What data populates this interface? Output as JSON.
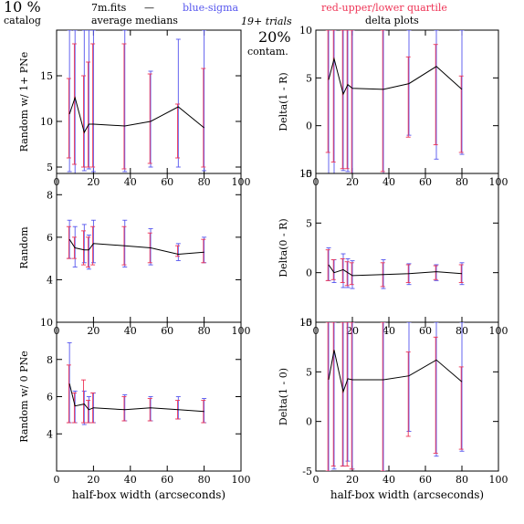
{
  "header": {
    "percent": "10 %",
    "catalog": "catalog",
    "filename": "7m.fits",
    "dash": "—",
    "medians": "average medians",
    "blue_label": "blue-sigma",
    "red_label": "red-upper/lower quartile",
    "trials": "19+ trials",
    "contam_pct": "20%",
    "contam": "contam.",
    "delta": "delta plots"
  },
  "colors": {
    "blue": "#5555ee",
    "red": "#ee3355",
    "line": "#000000"
  },
  "xlabel": "half-box width (arcseconds)",
  "chart_data": [
    {
      "type": "line",
      "ylabel": "Random w/ 1+ PNe",
      "xlim": [
        0,
        100
      ],
      "ylim": [
        4.3,
        20
      ],
      "xticks": [
        0,
        20,
        40,
        60,
        80,
        100
      ],
      "yticks": [
        5,
        10,
        15
      ],
      "x": [
        7,
        10,
        15,
        17.5,
        20,
        37,
        51,
        66,
        80
      ],
      "y": [
        10.8,
        12.6,
        8.8,
        9.7,
        9.7,
        9.5,
        10.0,
        11.6,
        9.3
      ],
      "sigma": [
        [
          4.5,
          20
        ],
        [
          4.3,
          20
        ],
        [
          4.6,
          20
        ],
        [
          4.8,
          20
        ],
        [
          4.5,
          20
        ],
        [
          4.5,
          20
        ],
        [
          5.0,
          15.5
        ],
        [
          5.0,
          19
        ],
        [
          4.6,
          20
        ]
      ],
      "quartile": [
        [
          6.0,
          14.7
        ],
        [
          5.3,
          18.5
        ],
        [
          5.0,
          15.0
        ],
        [
          5.0,
          16.5
        ],
        [
          5.0,
          18.5
        ],
        [
          4.8,
          18.5
        ],
        [
          5.4,
          15.2
        ],
        [
          6.0,
          11.9
        ],
        [
          5.0,
          15.8
        ]
      ]
    },
    {
      "type": "line",
      "ylabel": "Delta(1 - R)",
      "xlim": [
        0,
        100
      ],
      "ylim": [
        -5,
        10
      ],
      "xticks": [
        0,
        20,
        40,
        60,
        80,
        100
      ],
      "yticks": [
        -5,
        0,
        5,
        10
      ],
      "x": [
        7,
        10,
        15,
        17.5,
        20,
        37,
        51,
        66,
        80
      ],
      "y": [
        4.8,
        7.0,
        3.3,
        4.3,
        3.9,
        3.8,
        4.4,
        6.2,
        3.8
      ],
      "sigma": [
        [
          -5,
          10
        ],
        [
          -5,
          10
        ],
        [
          -4.7,
          10
        ],
        [
          -4.8,
          10
        ],
        [
          -5,
          10
        ],
        [
          -5,
          10
        ],
        [
          -1.0,
          10
        ],
        [
          -3.5,
          10
        ],
        [
          -3.0,
          10
        ]
      ],
      "quartile": [
        [
          -2.8,
          10
        ],
        [
          -3.8,
          10
        ],
        [
          -4.5,
          10
        ],
        [
          -4.5,
          10
        ],
        [
          -5,
          10
        ],
        [
          -4.8,
          10
        ],
        [
          -1.2,
          7.2
        ],
        [
          -2.0,
          8.5
        ],
        [
          -2.8,
          5.2
        ]
      ]
    },
    {
      "type": "line",
      "ylabel": "Random",
      "xlim": [
        0,
        100
      ],
      "ylim": [
        2,
        9
      ],
      "xticks": [
        0,
        20,
        40,
        60,
        80,
        100
      ],
      "yticks": [
        4,
        6,
        8
      ],
      "x": [
        7,
        10,
        15,
        17.5,
        20,
        37,
        51,
        66,
        80
      ],
      "y": [
        5.9,
        5.5,
        5.4,
        5.4,
        5.7,
        5.6,
        5.5,
        5.2,
        5.3
      ],
      "sigma": [
        [
          5.0,
          6.8
        ],
        [
          4.6,
          6.5
        ],
        [
          4.8,
          6.6
        ],
        [
          4.5,
          6.1
        ],
        [
          4.8,
          6.8
        ],
        [
          4.6,
          6.8
        ],
        [
          4.7,
          6.4
        ],
        [
          4.9,
          5.7
        ],
        [
          4.8,
          6.0
        ]
      ],
      "quartile": [
        [
          5.0,
          6.5
        ],
        [
          5.0,
          6.0
        ],
        [
          4.7,
          6.3
        ],
        [
          4.6,
          6.0
        ],
        [
          4.7,
          6.5
        ],
        [
          4.7,
          6.5
        ],
        [
          4.8,
          6.2
        ],
        [
          5.1,
          5.6
        ],
        [
          4.8,
          5.9
        ]
      ]
    },
    {
      "type": "line",
      "ylabel": "Delta(0 - R)",
      "xlim": [
        0,
        100
      ],
      "ylim": [
        -5,
        10
      ],
      "xticks": [
        0,
        20,
        40,
        60,
        80,
        100
      ],
      "yticks": [
        -5,
        0,
        5,
        10
      ],
      "x": [
        7,
        10,
        15,
        17.5,
        20,
        37,
        51,
        66,
        80
      ],
      "y": [
        0.8,
        0.0,
        0.3,
        0.0,
        -0.3,
        -0.2,
        -0.1,
        0.1,
        -0.1
      ],
      "sigma": [
        [
          -0.8,
          2.5
        ],
        [
          -1.0,
          1.3
        ],
        [
          -1.5,
          1.9
        ],
        [
          -1.5,
          1.4
        ],
        [
          -1.6,
          1.2
        ],
        [
          -1.6,
          1.3
        ],
        [
          -1.2,
          0.9
        ],
        [
          -0.8,
          0.8
        ],
        [
          -1.2,
          1.0
        ]
      ],
      "quartile": [
        [
          -0.8,
          2.3
        ],
        [
          -0.7,
          1.3
        ],
        [
          -1.0,
          1.4
        ],
        [
          -1.3,
          1.1
        ],
        [
          -1.2,
          1.0
        ],
        [
          -1.4,
          1.0
        ],
        [
          -1.0,
          0.8
        ],
        [
          -0.7,
          0.7
        ],
        [
          -1.0,
          0.8
        ]
      ]
    },
    {
      "type": "line",
      "ylabel": "Random w/ 0 PNe",
      "xlim": [
        0,
        100
      ],
      "ylim": [
        2,
        10
      ],
      "xticks": [
        0,
        20,
        40,
        60,
        80,
        100
      ],
      "yticks": [
        4,
        6,
        8,
        10
      ],
      "x": [
        7,
        10,
        15,
        17.5,
        20,
        37,
        51,
        66,
        80
      ],
      "y": [
        6.7,
        5.5,
        5.6,
        5.3,
        5.4,
        5.3,
        5.4,
        5.3,
        5.2
      ],
      "sigma": [
        [
          4.6,
          8.9
        ],
        [
          4.6,
          6.3
        ],
        [
          4.5,
          6.3
        ],
        [
          4.6,
          6.0
        ],
        [
          4.6,
          6.2
        ],
        [
          4.7,
          6.1
        ],
        [
          4.7,
          6.0
        ],
        [
          4.8,
          6.0
        ],
        [
          4.6,
          5.9
        ]
      ],
      "quartile": [
        [
          4.6,
          7.7
        ],
        [
          4.6,
          6.2
        ],
        [
          4.6,
          6.9
        ],
        [
          4.6,
          5.8
        ],
        [
          4.6,
          6.2
        ],
        [
          4.7,
          6.0
        ],
        [
          4.7,
          5.9
        ],
        [
          4.8,
          5.8
        ],
        [
          4.6,
          5.8
        ]
      ]
    },
    {
      "type": "line",
      "ylabel": "Delta(1 - 0)",
      "xlim": [
        0,
        100
      ],
      "ylim": [
        -5,
        10
      ],
      "xticks": [
        0,
        20,
        40,
        60,
        80,
        100
      ],
      "yticks": [
        -5,
        0,
        5,
        10
      ],
      "x": [
        7,
        10,
        15,
        17.5,
        20,
        37,
        51,
        66,
        80
      ],
      "y": [
        4.2,
        7.2,
        3.0,
        4.3,
        4.2,
        4.2,
        4.6,
        6.2,
        4.0
      ],
      "sigma": [
        [
          -5,
          10
        ],
        [
          -4.8,
          10
        ],
        [
          -4.5,
          10
        ],
        [
          -4.0,
          10
        ],
        [
          -4.8,
          10
        ],
        [
          -5,
          10
        ],
        [
          -1.0,
          10
        ],
        [
          -3.5,
          10
        ],
        [
          -3.0,
          10
        ]
      ],
      "quartile": [
        [
          -5,
          10
        ],
        [
          -4.5,
          10
        ],
        [
          -4.5,
          10
        ],
        [
          -4.5,
          10
        ],
        [
          -4.8,
          10
        ],
        [
          -5,
          10
        ],
        [
          -1.5,
          7.0
        ],
        [
          -3.2,
          8.5
        ],
        [
          -2.8,
          5.5
        ]
      ]
    }
  ]
}
